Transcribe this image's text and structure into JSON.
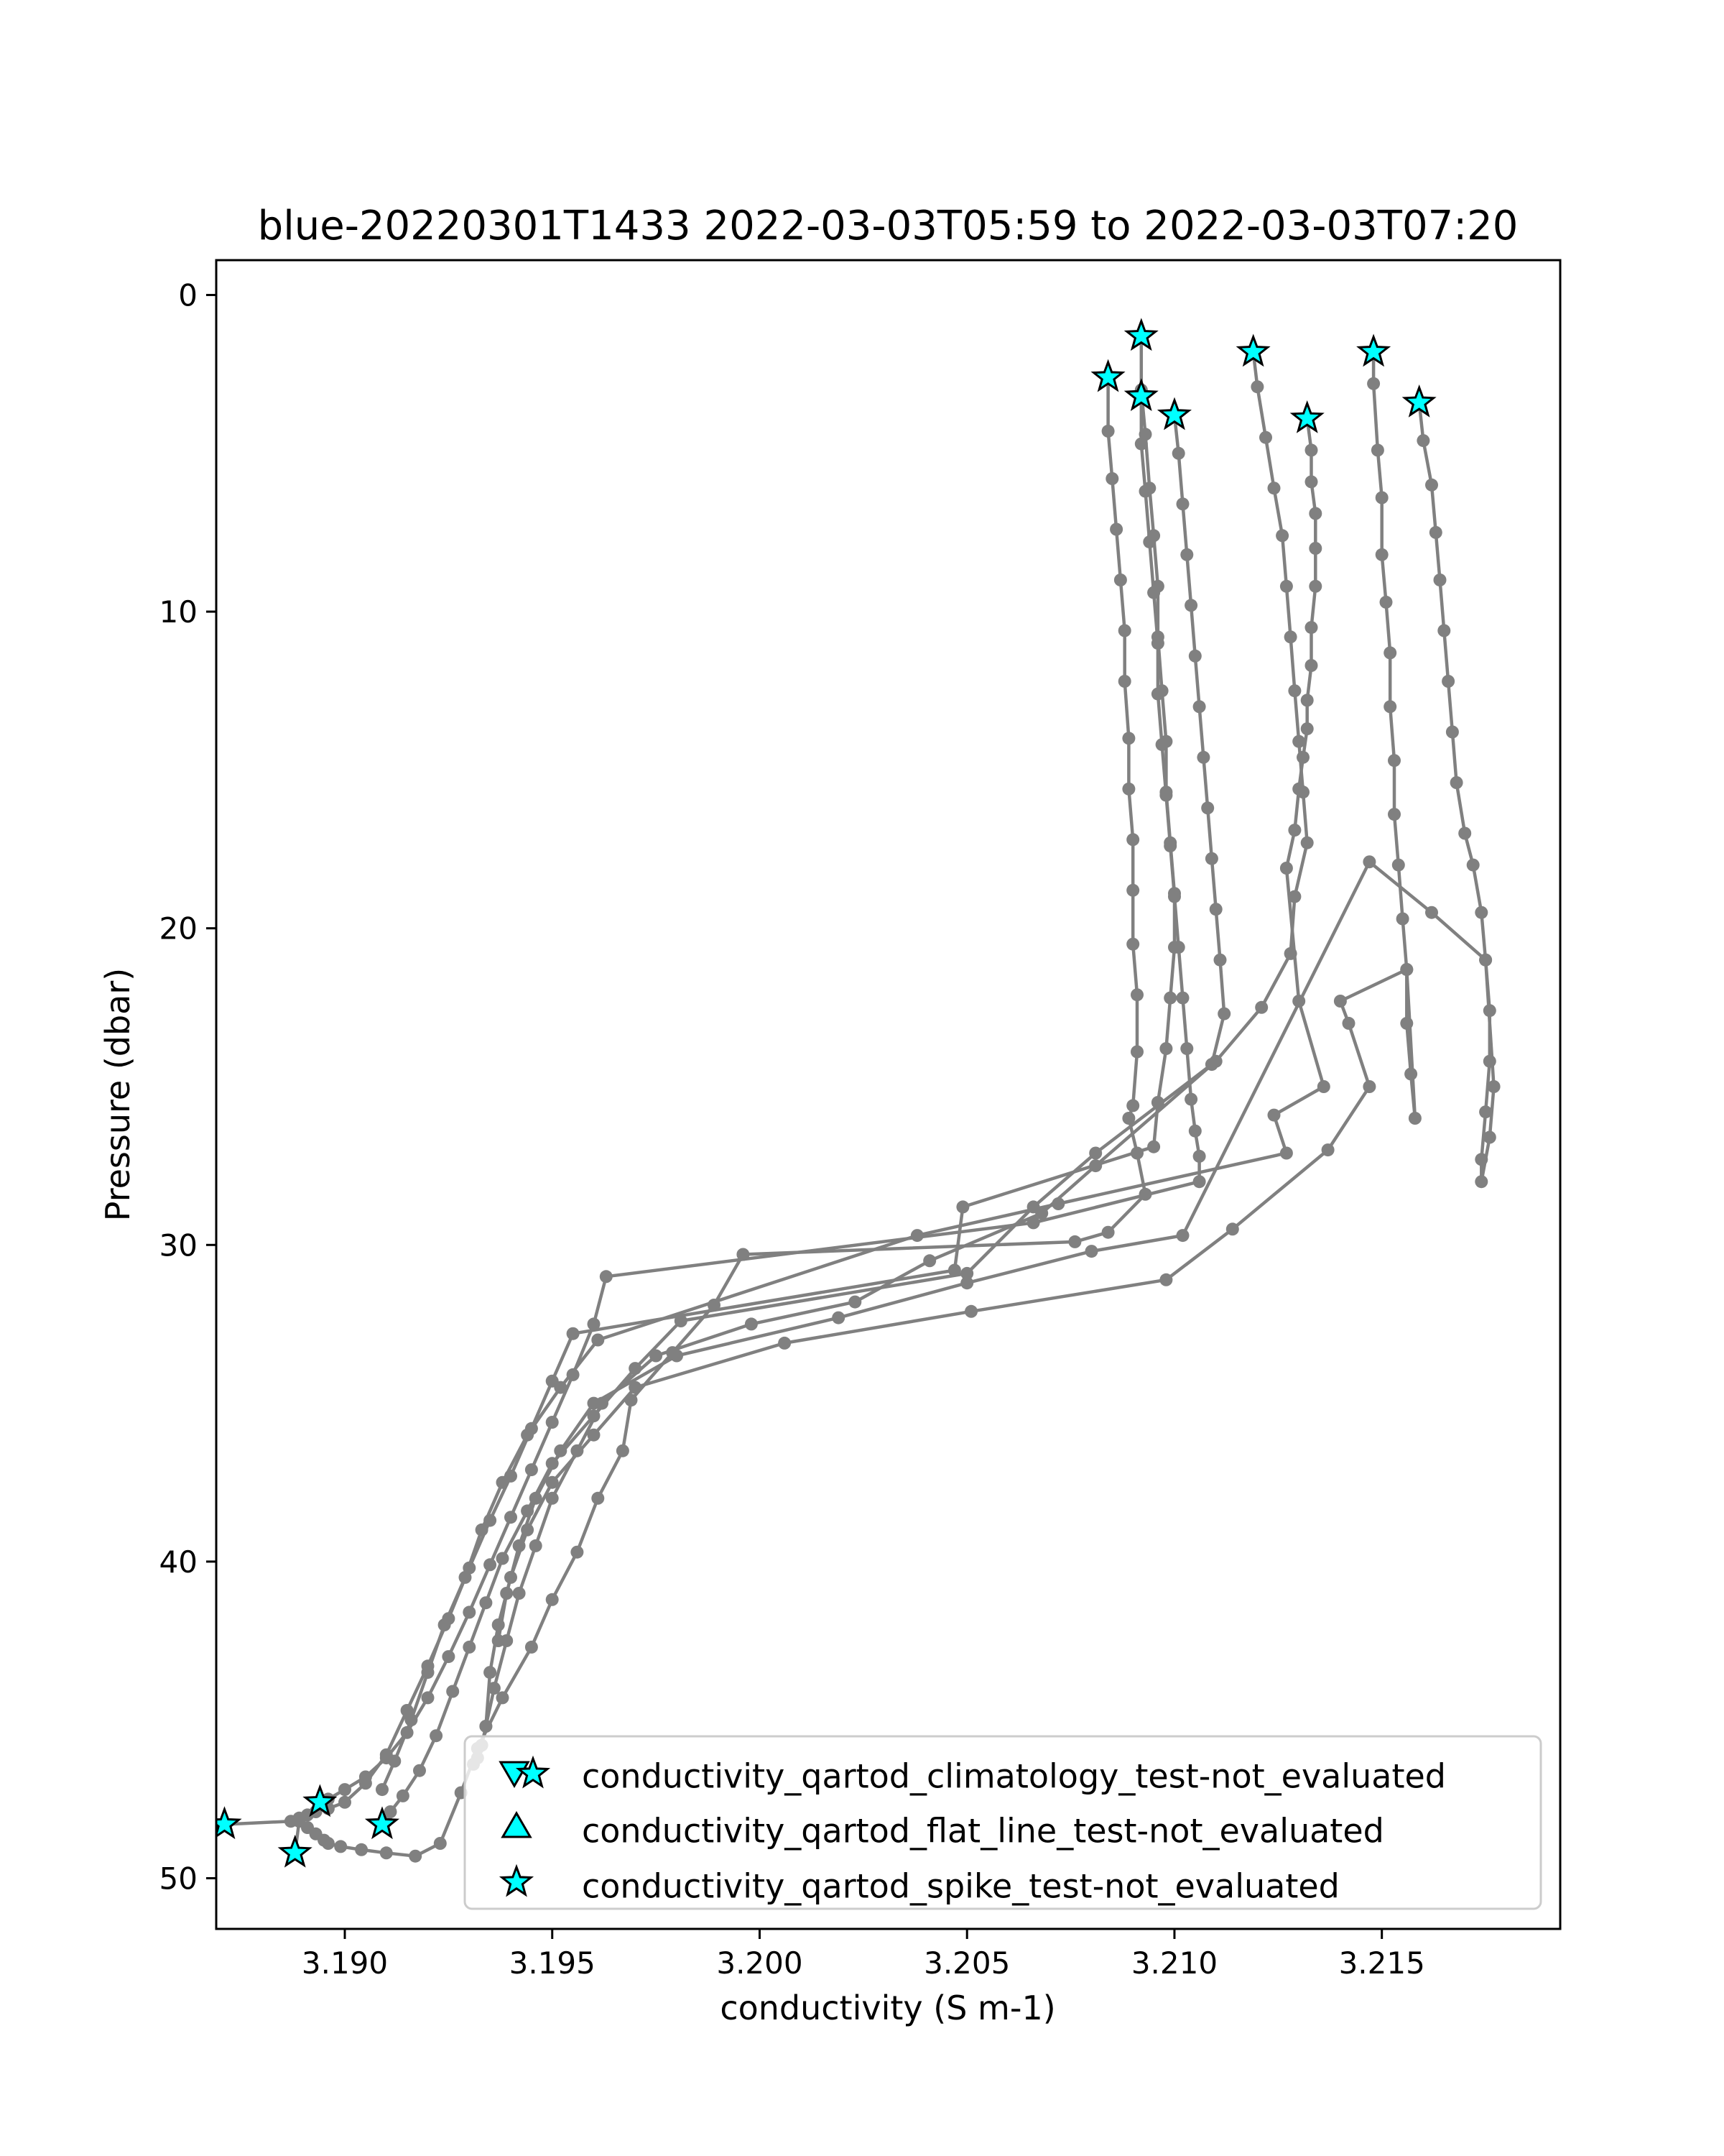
{
  "chart_data": {
    "type": "line",
    "title": "blue-20220301T1433 2022-03-03T05:59 to 2022-03-03T07:20",
    "xlabel": "conductivity (S m-1)",
    "ylabel": "Pressure (dbar)",
    "xlim": [
      3.1869,
      3.2193
    ],
    "ylim": [
      51.6,
      -1.1
    ],
    "y_inverted": true,
    "xticks": [
      3.19,
      3.195,
      3.2,
      3.205,
      3.21,
      3.215
    ],
    "xtick_labels": [
      "3.190",
      "3.195",
      "3.200",
      "3.205",
      "3.210",
      "3.215"
    ],
    "yticks": [
      0,
      10,
      20,
      30,
      40,
      50
    ],
    "ytick_labels": [
      "0",
      "10",
      "20",
      "30",
      "40",
      "50"
    ],
    "grid": false,
    "line_color": "#808080",
    "marker_color": "#808080",
    "flag_color": "#00ffff",
    "legend_position": "lower-right",
    "legend": [
      {
        "label": "conductivity_qartod_climatology_test-not_evaluated",
        "marker": "triangle-down+star"
      },
      {
        "label": "conductivity_qartod_flat_line_test-not_evaluated",
        "marker": "triangle-up"
      },
      {
        "label": "conductivity_qartod_spike_test-not_evaluated",
        "marker": "star"
      }
    ],
    "series": [
      {
        "x": [
          3.2084,
          3.2084,
          3.2085,
          3.2086,
          3.2087,
          3.2088,
          3.2088,
          3.2089,
          3.2089,
          3.209,
          3.209,
          3.209,
          3.2091,
          3.2091,
          3.209,
          3.2089,
          3.2091,
          3.2093,
          3.2084,
          3.2076,
          3.1996,
          3.1989,
          3.1979,
          3.1969,
          3.1967,
          3.1961,
          3.1956,
          3.195,
          3.1945,
          3.1938,
          3.1932,
          3.1928,
          3.1923,
          3.1917,
          3.191,
          3.1904,
          3.1899,
          3.1896,
          3.1895,
          3.1893,
          3.1891,
          3.1889,
          3.1888,
          3.1888
        ],
        "y": [
          2.6,
          4.3,
          5.8,
          7.4,
          9.0,
          10.6,
          12.2,
          14.0,
          15.6,
          17.2,
          18.8,
          20.5,
          22.1,
          23.9,
          25.6,
          26.0,
          27.1,
          28.4,
          29.6,
          29.9,
          30.3,
          31.9,
          33.4,
          34.9,
          36.5,
          38.0,
          39.7,
          41.2,
          42.7,
          44.3,
          45.9,
          47.3,
          48.9,
          49.3,
          49.2,
          49.1,
          49.0,
          48.9,
          48.8,
          48.6,
          48.4,
          48.2,
          49.2,
          49.2
        ],
        "start_flag": true,
        "end_flag": true
      },
      {
        "x": [
          3.2092,
          3.2092,
          3.2093,
          3.2094,
          3.2095,
          3.2096,
          3.2096,
          3.2097,
          3.2098,
          3.2098,
          3.2099,
          3.21,
          3.21,
          3.2099,
          3.2098,
          3.2096,
          3.2095,
          3.2049,
          3.2047,
          3.1955,
          3.195,
          3.1945,
          3.194,
          3.1935,
          3.193,
          3.1925,
          3.192,
          3.1915,
          3.191,
          3.1905,
          3.19,
          3.1896,
          3.1893,
          3.1891,
          3.1889,
          3.1887,
          3.1871
        ],
        "y": [
          1.3,
          3.0,
          4.4,
          6.1,
          7.6,
          9.2,
          10.8,
          12.5,
          14.1,
          15.7,
          17.3,
          18.9,
          20.6,
          22.2,
          23.8,
          25.5,
          26.9,
          28.8,
          30.8,
          32.8,
          34.3,
          35.8,
          37.3,
          38.7,
          40.2,
          41.8,
          43.3,
          44.7,
          46.1,
          47.0,
          47.6,
          47.8,
          47.9,
          48.0,
          48.1,
          48.2,
          48.3
        ],
        "start_flag": true,
        "end_flag": true
      },
      {
        "x": [
          3.2092,
          3.2092,
          3.2093,
          3.2094,
          3.2095,
          3.2096,
          3.2096,
          3.2097,
          3.2098,
          3.2099,
          3.21,
          3.2101,
          3.2102,
          3.2103,
          3.2104,
          3.2105,
          3.2106,
          3.2106,
          3.2066,
          3.1963,
          3.196,
          3.1955,
          3.195,
          3.1945,
          3.194,
          3.1935,
          3.193,
          3.1925,
          3.192,
          3.1915,
          3.191,
          3.1905,
          3.19,
          3.1896,
          3.1894
        ],
        "y": [
          3.2,
          4.7,
          6.2,
          7.8,
          9.4,
          11.0,
          12.6,
          14.2,
          15.8,
          17.4,
          19.0,
          20.6,
          22.2,
          23.8,
          25.4,
          26.4,
          27.2,
          28.0,
          29.3,
          31.0,
          32.5,
          34.1,
          35.6,
          37.1,
          38.6,
          40.1,
          41.6,
          43.0,
          44.3,
          45.4,
          46.2,
          46.8,
          47.2,
          47.5,
          47.6
        ],
        "start_flag": true,
        "end_flag": true
      },
      {
        "x": [
          3.21,
          3.2101,
          3.2102,
          3.2103,
          3.2104,
          3.2105,
          3.2106,
          3.2107,
          3.2108,
          3.2109,
          3.211,
          3.2111,
          3.2112,
          3.2109,
          3.2081,
          3.2066,
          3.205,
          3.1981,
          3.197,
          3.196,
          3.195,
          3.1944,
          3.1938,
          3.1934,
          3.193,
          3.1926,
          3.1922,
          3.1918,
          3.1914,
          3.1911,
          3.191,
          3.1909
        ],
        "y": [
          3.8,
          5.0,
          6.6,
          8.2,
          9.8,
          11.4,
          13.0,
          14.6,
          16.2,
          17.8,
          19.4,
          21.0,
          22.7,
          24.3,
          27.1,
          28.8,
          30.9,
          32.4,
          33.9,
          35.4,
          36.9,
          38.4,
          39.9,
          41.3,
          42.7,
          44.1,
          45.5,
          46.6,
          47.4,
          47.9,
          48.2,
          48.3
        ],
        "start_flag": true,
        "end_flag": true
      },
      {
        "x": [
          3.2119,
          3.212,
          3.2122,
          3.2124,
          3.2126,
          3.2127,
          3.2128,
          3.2129,
          3.213,
          3.2131,
          3.2132,
          3.2129,
          3.2128,
          3.2121,
          3.211,
          3.2081,
          3.2068,
          3.2041,
          3.2023,
          3.1998,
          3.1975,
          3.1962,
          3.1956,
          3.195,
          3.1946,
          3.1942,
          3.1939,
          3.1936,
          3.1934,
          3.1933,
          3.1932,
          3.1931
        ],
        "y": [
          1.8,
          2.9,
          4.5,
          6.1,
          7.6,
          9.2,
          10.8,
          12.5,
          14.1,
          15.7,
          17.3,
          19.0,
          20.8,
          22.5,
          24.2,
          27.5,
          29.0,
          30.5,
          31.8,
          32.5,
          33.5,
          35.0,
          36.5,
          38.0,
          39.5,
          41.0,
          42.5,
          44.0,
          45.2,
          45.8,
          46.2,
          46.4
        ],
        "start_flag": true,
        "end_flag": false
      },
      {
        "x": [
          3.2132,
          3.2133,
          3.2133,
          3.2134,
          3.2134,
          3.2134,
          3.2133,
          3.2133,
          3.2132,
          3.2132,
          3.2131,
          3.213,
          3.2129,
          3.2127,
          3.213,
          3.2136,
          3.2124,
          3.2127,
          3.2072,
          3.2038,
          3.1961,
          3.1952,
          3.1944,
          3.1938,
          3.1933,
          3.1929,
          3.1924,
          3.192,
          3.1916,
          3.1912,
          3.1909
        ],
        "y": [
          3.9,
          4.9,
          5.9,
          6.9,
          8.0,
          9.2,
          10.5,
          11.7,
          12.8,
          13.7,
          14.6,
          15.6,
          16.9,
          18.1,
          22.3,
          25.0,
          25.9,
          27.1,
          28.7,
          29.7,
          33.0,
          34.5,
          36.0,
          37.5,
          39.0,
          40.5,
          42.0,
          43.5,
          45.0,
          46.3,
          47.2
        ],
        "start_flag": true,
        "end_flag": false
      },
      {
        "x": [
          3.2148,
          3.2148,
          3.2149,
          3.215,
          3.215,
          3.2151,
          3.2152,
          3.2152,
          3.2153,
          3.2153,
          3.2154,
          3.2155,
          3.2156,
          3.2156,
          3.2157,
          3.2158,
          3.2156,
          3.214,
          3.2142,
          3.2147,
          3.2137,
          3.2114,
          3.2098,
          3.2051,
          3.2006,
          3.197,
          3.196,
          3.195,
          3.1944,
          3.194,
          3.1937,
          3.1935,
          3.1934
        ],
        "y": [
          1.8,
          2.8,
          4.9,
          6.4,
          8.2,
          9.7,
          11.3,
          13.0,
          14.7,
          16.4,
          18.0,
          19.7,
          21.3,
          23.0,
          24.6,
          26.0,
          21.3,
          22.3,
          23.0,
          25.0,
          27.0,
          29.5,
          31.1,
          32.1,
          33.1,
          34.5,
          36.0,
          37.5,
          39.0,
          40.5,
          42.0,
          43.5,
          45.2
        ],
        "start_flag": true,
        "end_flag": false
      },
      {
        "x": [
          3.2159,
          3.216,
          3.2162,
          3.2163,
          3.2164,
          3.2165,
          3.2166,
          3.2167,
          3.2168,
          3.217,
          3.2172,
          3.2174,
          3.2175,
          3.2176,
          3.2176,
          3.2175,
          3.2174,
          3.2174,
          3.2176,
          3.2177,
          3.2175,
          3.2162,
          3.2147,
          3.2102,
          3.208,
          3.205,
          3.2019,
          3.198,
          3.196,
          3.1952,
          3.1946,
          3.1942,
          3.1939,
          3.1937
        ],
        "y": [
          3.4,
          4.6,
          6.0,
          7.5,
          9.0,
          10.6,
          12.2,
          13.8,
          15.4,
          17.0,
          18.0,
          19.5,
          21.0,
          22.6,
          24.2,
          25.8,
          27.3,
          28.0,
          26.6,
          25.0,
          21.0,
          19.5,
          17.9,
          29.7,
          30.2,
          31.2,
          32.3,
          33.5,
          35.0,
          36.5,
          38.0,
          39.5,
          41.0,
          42.5
        ],
        "start_flag": true,
        "end_flag": false
      }
    ]
  }
}
